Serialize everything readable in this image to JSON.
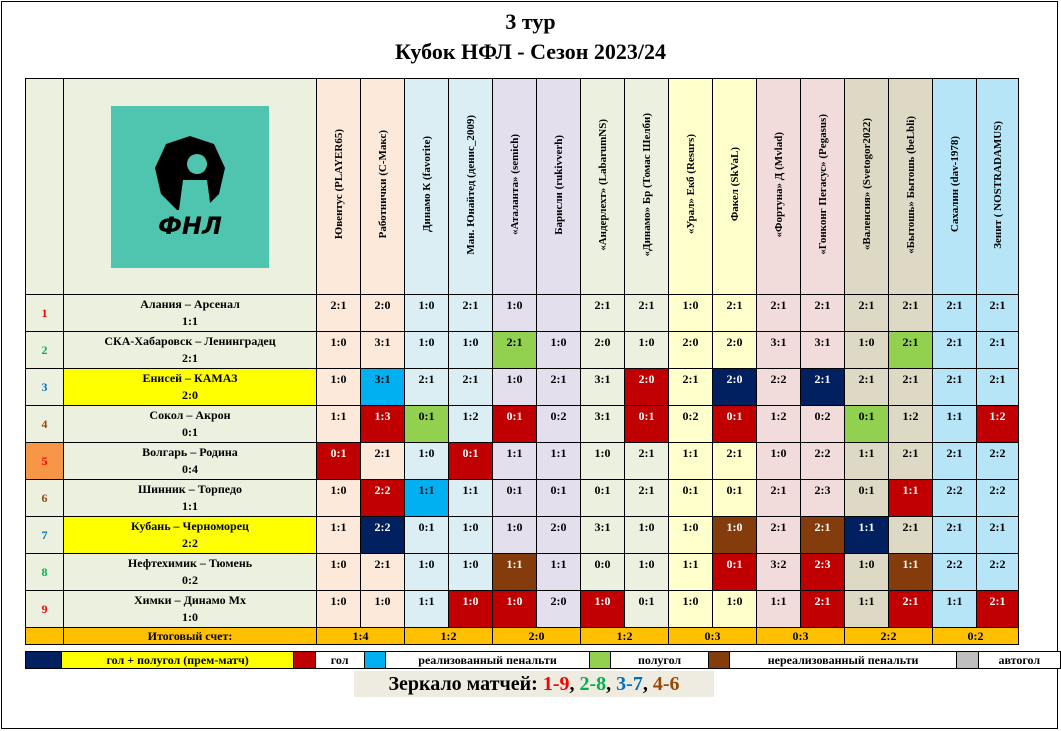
{
  "title_line1": "3 тур",
  "title_line2": "Кубок НФЛ - Сезон 2023/24",
  "logo_text": "ФНЛ",
  "columns": [
    {
      "label": "Ювентус (PLAYER65)",
      "bg": "#fde9d9"
    },
    {
      "label": "Работнички (С-Макс)",
      "bg": "#fde9d9"
    },
    {
      "label": "Динамо К (favorite)",
      "bg": "#daeef3"
    },
    {
      "label": "Ман. Юнайтед (денис_2009)",
      "bg": "#daeef3"
    },
    {
      "label": "«Аталанта» (semich)",
      "bg": "#e4dfec"
    },
    {
      "label": "Барисли (rukivverh)",
      "bg": "#e4dfec"
    },
    {
      "label": "«Андерлехт» (LabarumNS)",
      "bg": "#ebf1de"
    },
    {
      "label": "«Динамо» Бр (Томас Шелби)",
      "bg": "#ebf1de"
    },
    {
      "label": "«Урал» Екб (Resurs)",
      "bg": "#ffffcc"
    },
    {
      "label": "Факел (SkVaL)",
      "bg": "#ffffcc"
    },
    {
      "label": "«Фортуна» Д (Mvlad)",
      "bg": "#f2dcdb"
    },
    {
      "label": "«Гонконг Пегасус» (Pegasus)",
      "bg": "#f2dcdb"
    },
    {
      "label": "«Валенсия» (Svetogor2022)",
      "bg": "#ddd9c4"
    },
    {
      "label": "«Бытошь» Бытошь (beLbli)",
      "bg": "#ddd9c4"
    },
    {
      "label": "Сахалин (dav-1978)",
      "bg": "#b7e5f8"
    },
    {
      "label": "Зенит ( NOSTRADAMUS)",
      "bg": "#b7e5f8"
    }
  ],
  "rows": [
    {
      "num": "1",
      "numColor": "#ff0000",
      "numBg": "#ebf1de",
      "match": "Алания – Арсенал",
      "result": "1:1",
      "matchBg": "#ebf1de",
      "scores": [
        "2:1",
        "2:0",
        "1:0",
        "2:1",
        "1:0",
        "",
        "2:1",
        "2:1",
        "1:0",
        "2:1",
        "2:1",
        "2:1",
        "2:1",
        "2:1",
        "2:1",
        "2:1"
      ],
      "marks": [
        "",
        "",
        "",
        "",
        "",
        "",
        "",
        "",
        "",
        "",
        "",
        "",
        "",
        "",
        "",
        ""
      ]
    },
    {
      "num": "2",
      "numColor": "#00b050",
      "numBg": "#ebf1de",
      "match": "СКА-Хабаровск – Ленинградец",
      "result": "2:1",
      "matchBg": "#ebf1de",
      "scores": [
        "1:0",
        "3:1",
        "1:0",
        "1:0",
        "2:1",
        "1:0",
        "2:0",
        "1:0",
        "2:0",
        "2:0",
        "3:1",
        "3:1",
        "1:0",
        "2:1",
        "2:1",
        "2:1"
      ],
      "marks": [
        "",
        "",
        "",
        "",
        "g",
        "",
        "",
        "",
        "",
        "",
        "",
        "",
        "",
        "g",
        "",
        ""
      ]
    },
    {
      "num": "3",
      "numColor": "#0070c0",
      "numBg": "#ebf1de",
      "match": "Енисей – КАМАЗ",
      "result": "2:0",
      "matchBg": "#ffff00",
      "scores": [
        "1:0",
        "3:1",
        "2:1",
        "2:1",
        "1:0",
        "2:1",
        "3:1",
        "2:0",
        "2:1",
        "2:0",
        "2:2",
        "2:1",
        "2:1",
        "2:1",
        "2:1",
        "2:1"
      ],
      "marks": [
        "",
        "b",
        "",
        "",
        "",
        "",
        "",
        "r",
        "",
        "n",
        "",
        "n",
        "",
        "",
        "",
        ""
      ]
    },
    {
      "num": "4",
      "numColor": "#984807",
      "numBg": "#ebf1de",
      "match": "Сокол – Акрон",
      "result": "0:1",
      "matchBg": "#ebf1de",
      "scores": [
        "1:1",
        "1:3",
        "0:1",
        "1:2",
        "0:1",
        "0:2",
        "3:1",
        "0:1",
        "0:2",
        "0:1",
        "1:2",
        "0:2",
        "0:1",
        "1:2",
        "1:1",
        "1:2"
      ],
      "marks": [
        "",
        "r",
        "g",
        "",
        "r",
        "",
        "",
        "r",
        "",
        "r",
        "",
        "",
        "g",
        "",
        "",
        "r"
      ]
    },
    {
      "num": "5",
      "numColor": "#ff0000",
      "numBg": "#f79646",
      "match": "Волгарь – Родина",
      "result": "0:4",
      "matchBg": "#ebf1de",
      "scores": [
        "0:1",
        "2:1",
        "1:0",
        "0:1",
        "1:1",
        "1:1",
        "1:0",
        "2:1",
        "1:1",
        "2:1",
        "1:0",
        "2:2",
        "1:1",
        "2:1",
        "2:1",
        "2:2"
      ],
      "marks": [
        "r",
        "",
        "",
        "r",
        "",
        "",
        "",
        "",
        "",
        "",
        "",
        "",
        "",
        "",
        "",
        ""
      ]
    },
    {
      "num": "6",
      "numColor": "#984807",
      "numBg": "#ebf1de",
      "match": "Шинник – Торпедо",
      "result": "1:1",
      "matchBg": "#ebf1de",
      "scores": [
        "1:0",
        "2:2",
        "1:1",
        "1:1",
        "0:1",
        "0:1",
        "0:1",
        "2:1",
        "0:1",
        "0:1",
        "2:1",
        "2:3",
        "0:1",
        "1:1",
        "2:2",
        "2:2"
      ],
      "marks": [
        "",
        "r",
        "b",
        "",
        "",
        "",
        "",
        "",
        "",
        "",
        "",
        "",
        "",
        "r",
        "",
        ""
      ]
    },
    {
      "num": "7",
      "numColor": "#0070c0",
      "numBg": "#ebf1de",
      "match": "Кубань – Черноморец",
      "result": "2:2",
      "matchBg": "#ffff00",
      "scores": [
        "1:1",
        "2:2",
        "0:1",
        "1:0",
        "1:0",
        "2:0",
        "3:1",
        "1:0",
        "1:0",
        "1:0",
        "2:1",
        "2:1",
        "1:1",
        "2:1",
        "2:1",
        "2:1"
      ],
      "marks": [
        "",
        "n",
        "",
        "",
        "",
        "",
        "",
        "",
        "",
        "m",
        "",
        "m",
        "n",
        "",
        "",
        ""
      ]
    },
    {
      "num": "8",
      "numColor": "#00b050",
      "numBg": "#ebf1de",
      "match": "Нефтехимик – Тюмень",
      "result": "0:2",
      "matchBg": "#ebf1de",
      "scores": [
        "1:0",
        "2:1",
        "1:0",
        "1:0",
        "1:1",
        "1:1",
        "0:0",
        "1:0",
        "1:1",
        "0:1",
        "3:2",
        "2:3",
        "1:0",
        "1:1",
        "2:2",
        "2:2"
      ],
      "marks": [
        "",
        "",
        "",
        "",
        "m",
        "",
        "",
        "",
        "",
        "r",
        "",
        "r",
        "",
        "m",
        "",
        ""
      ]
    },
    {
      "num": "9",
      "numColor": "#ff0000",
      "numBg": "#ebf1de",
      "match": "Химки – Динамо Мх",
      "result": "1:0",
      "matchBg": "#ebf1de",
      "scores": [
        "1:0",
        "1:0",
        "1:1",
        "1:0",
        "1:0",
        "2:0",
        "1:0",
        "0:1",
        "1:0",
        "1:0",
        "1:1",
        "2:1",
        "1:1",
        "2:1",
        "1:1",
        "2:1"
      ],
      "marks": [
        "",
        "",
        "",
        "r",
        "r",
        "",
        "r",
        "",
        "",
        "",
        "",
        "r",
        "",
        "r",
        "",
        "r"
      ]
    }
  ],
  "totals_label": "Итоговый счет:",
  "totals": [
    "1:4",
    "1:2",
    "2:0",
    "1:2",
    "0:3",
    "0:3",
    "2:2",
    "0:2"
  ],
  "mark_colors": {
    "r": "#c00000",
    "b": "#00b0f0",
    "g": "#92d050",
    "n": "#002060",
    "m": "#843c0c"
  },
  "legend": [
    {
      "color": "#002060",
      "text": "гол + полугол  (прем-матч)",
      "textBg": "#ffff00"
    },
    {
      "color": "#c00000",
      "text": "гол",
      "textBg": "#ffffff"
    },
    {
      "color": "#00b0f0",
      "text": "реализованный  пенальти",
      "textBg": "#ffffff"
    },
    {
      "color": "#92d050",
      "text": "полугол",
      "textBg": "#ffffff"
    },
    {
      "color": "#843c0c",
      "text": "нереализованный  пенальти",
      "textBg": "#ffffff"
    },
    {
      "color": "#bfbfbf",
      "text": "автогол",
      "textBg": "#ffffff"
    }
  ],
  "mirror": {
    "label": "Зеркало матчей: ",
    "pairs": [
      {
        "text": "1-9",
        "color": "#ff0000"
      },
      {
        "text": "2-8",
        "color": "#00b050"
      },
      {
        "text": "3-7",
        "color": "#0070c0"
      },
      {
        "text": "4-6",
        "color": "#984807"
      }
    ]
  }
}
